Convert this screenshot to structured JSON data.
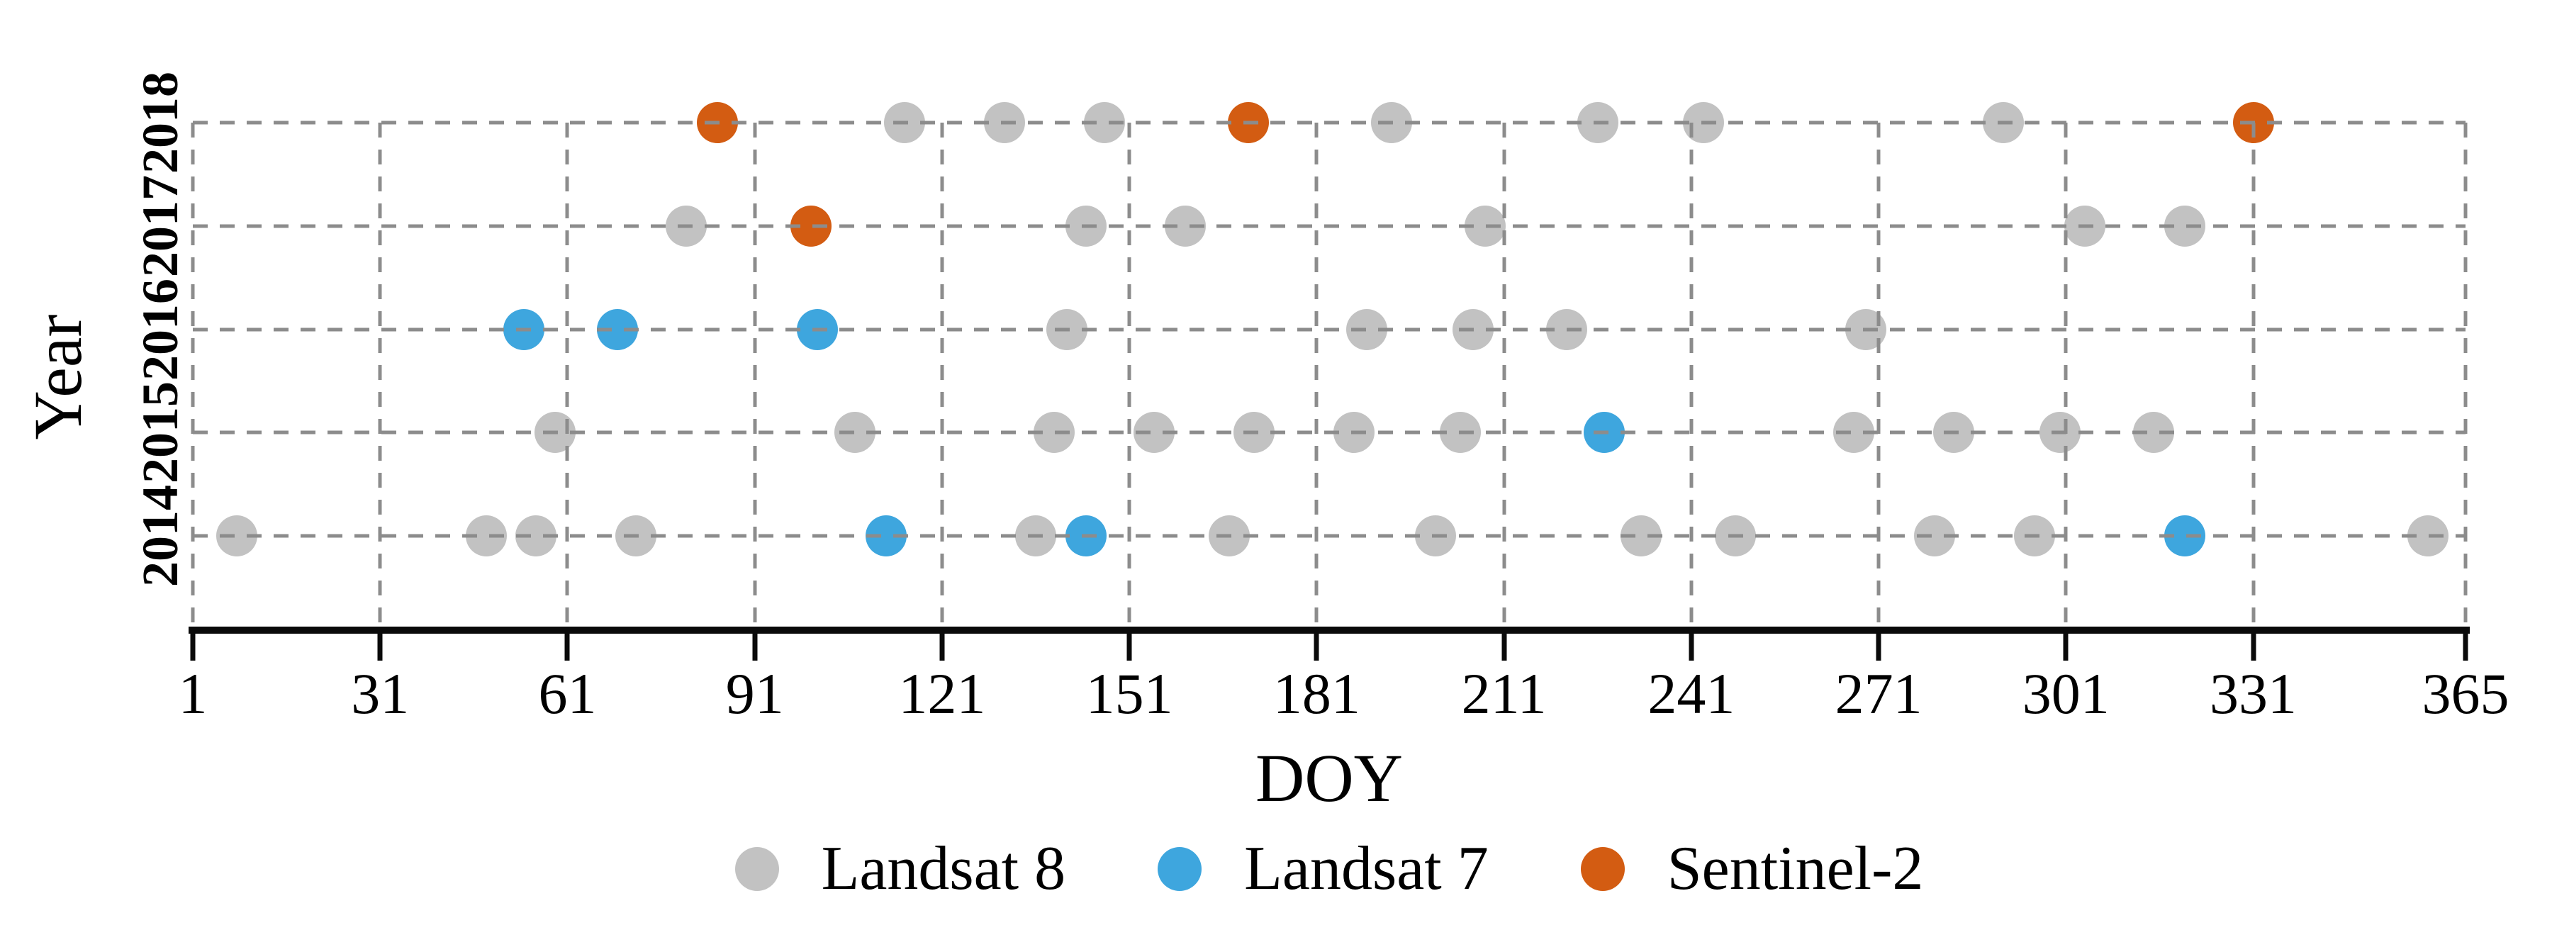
{
  "chart_data": {
    "type": "scatter",
    "title": "",
    "xlabel": "DOY",
    "ylabel": "Year",
    "xlim": [
      1,
      365
    ],
    "x_ticks": [
      1,
      31,
      61,
      91,
      121,
      151,
      181,
      211,
      241,
      271,
      301,
      331,
      365
    ],
    "y_categories": [
      "2014",
      "2015",
      "2016",
      "2017",
      "2018"
    ],
    "grid": "dashed-horizontal-and-vertical",
    "legend_position": "bottom-center",
    "series": [
      {
        "name": "Landsat 8",
        "color": "#C2C2C2",
        "points": {
          "2014": [
            8,
            48,
            56,
            72,
            136,
            167,
            200,
            233,
            248,
            280,
            296,
            359
          ],
          "2015": [
            59,
            107,
            139,
            155,
            171,
            187,
            204,
            267,
            283,
            300,
            315
          ],
          "2016": [
            141,
            189,
            206,
            221,
            269
          ],
          "2017": [
            80,
            144,
            160,
            208,
            304,
            320
          ],
          "2018": [
            115,
            131,
            147,
            193,
            226,
            243,
            291
          ]
        }
      },
      {
        "name": "Landsat 7",
        "color": "#3EA6DE",
        "points": {
          "2014": [
            112,
            144,
            320
          ],
          "2015": [
            227
          ],
          "2016": [
            54,
            69,
            101
          ],
          "2017": [],
          "2018": []
        }
      },
      {
        "name": "Sentinel-2",
        "color": "#D35C12",
        "points": {
          "2014": [],
          "2015": [],
          "2016": [],
          "2017": [
            100
          ],
          "2018": [
            85,
            170,
            331
          ]
        }
      }
    ]
  }
}
